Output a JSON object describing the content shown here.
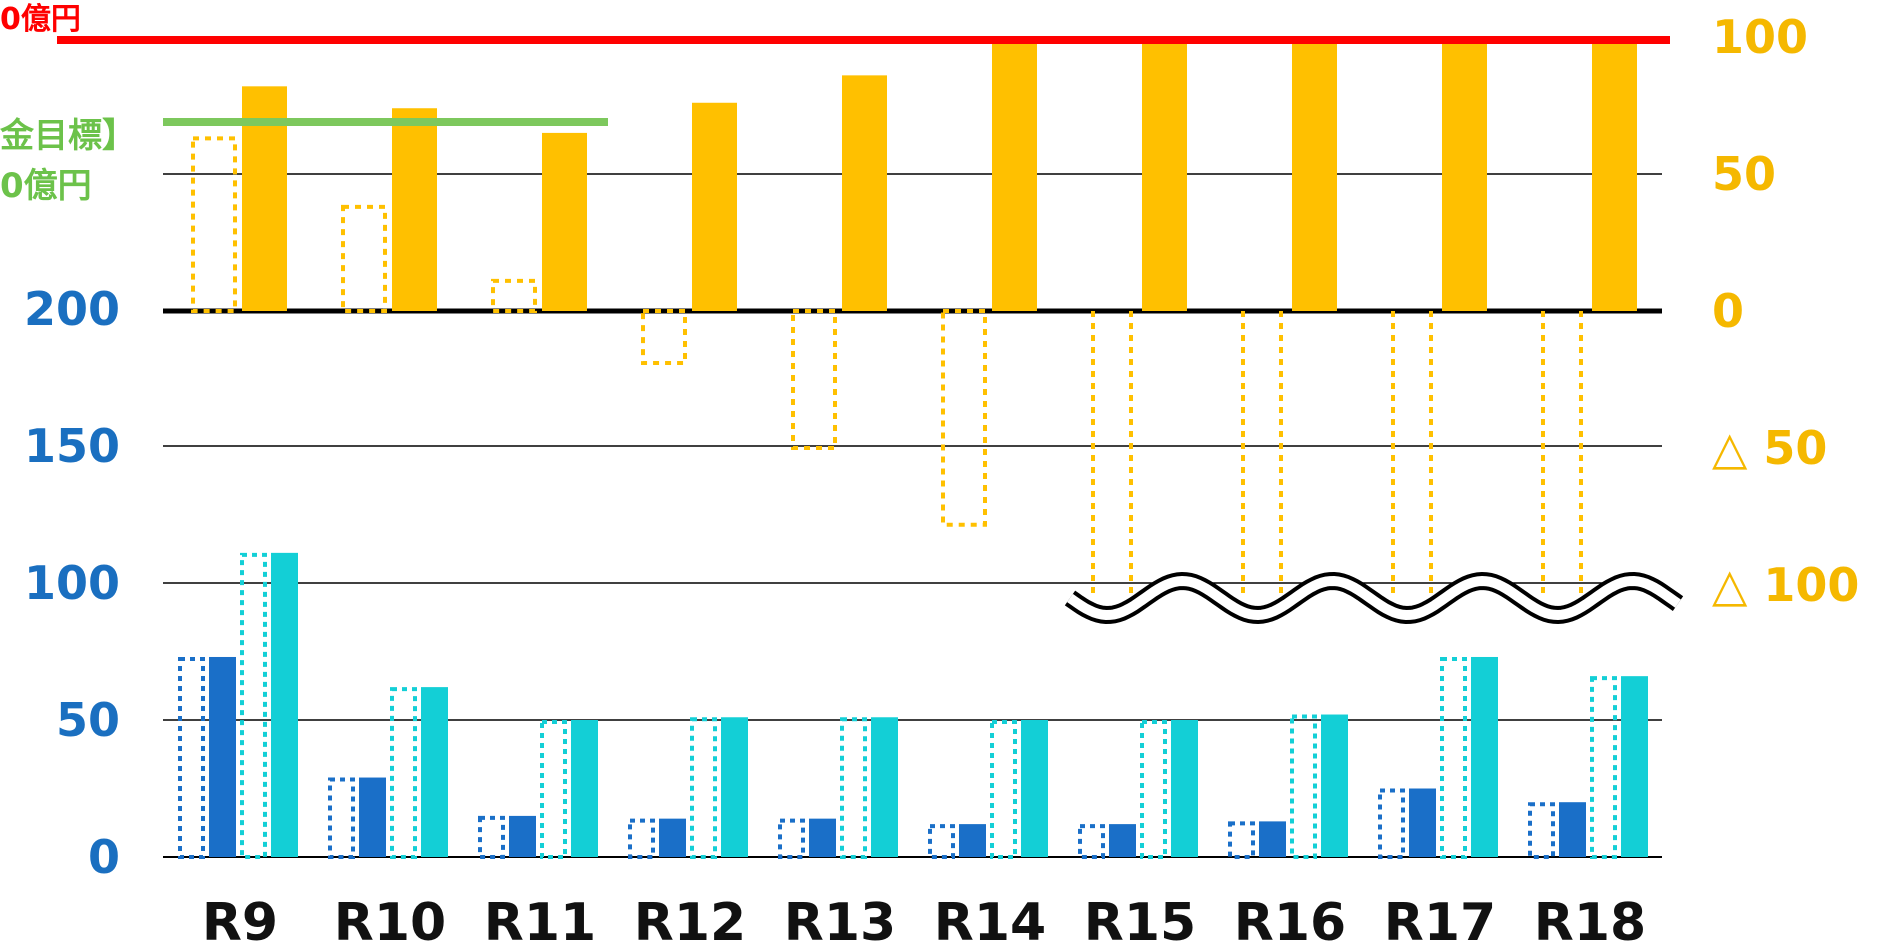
{
  "annotations": {
    "red_target": "0億円",
    "green_target_line1": "金目標】",
    "green_target_line2": "0億円"
  },
  "colors": {
    "bar_top": "#ffc000",
    "bar_dark_blue": "#1a6fc8",
    "bar_cyan": "#13cfd6",
    "red_line": "#ff0000",
    "green_line": "#7dc85d",
    "left_axis_text": "#1a6fc0",
    "right_axis_text": "#f5b800"
  },
  "chart_data": {
    "type": "bar",
    "categories": [
      "R9",
      "R10",
      "R11",
      "R12",
      "R13",
      "R14",
      "R15",
      "R16",
      "R17",
      "R18"
    ],
    "left_axis": {
      "ticks": [
        "0",
        "50",
        "100",
        "150",
        "200"
      ],
      "range": [
        0,
        200
      ]
    },
    "right_axis": {
      "ticks": [
        "100",
        "50",
        "0",
        "△ 50",
        "△ 100"
      ],
      "range": [
        -100,
        100
      ]
    },
    "axis_break": "right axis below △100 (wavy break marks shown)",
    "bottom_series": [
      {
        "style": "dark blue, dotted outline",
        "values": [
          73,
          29,
          15,
          14,
          14,
          12,
          12,
          13,
          25,
          20
        ]
      },
      {
        "style": "dark blue, solid",
        "values": [
          73,
          29,
          15,
          14,
          14,
          12,
          12,
          13,
          25,
          20
        ]
      },
      {
        "style": "cyan, dotted outline",
        "values": [
          111,
          62,
          50,
          51,
          51,
          50,
          50,
          52,
          73,
          66
        ]
      },
      {
        "style": "cyan, solid",
        "values": [
          111,
          62,
          50,
          51,
          51,
          50,
          50,
          52,
          73,
          66
        ]
      }
    ],
    "top_series": [
      {
        "style": "gold, dotted outline",
        "values": [
          63,
          38,
          11,
          -19,
          -50,
          -78,
          -100,
          -100,
          -100,
          -100
        ]
      },
      {
        "style": "gold, solid",
        "values": [
          82,
          74,
          65,
          76,
          86,
          100,
          100,
          100,
          100,
          100
        ]
      }
    ],
    "reference_lines": [
      {
        "color": "red",
        "value_right_axis": 100,
        "label": "0億円"
      },
      {
        "color": "green",
        "value_right_axis": 70,
        "label": "金目標】0億円"
      }
    ],
    "grid": true,
    "legend": "none"
  }
}
